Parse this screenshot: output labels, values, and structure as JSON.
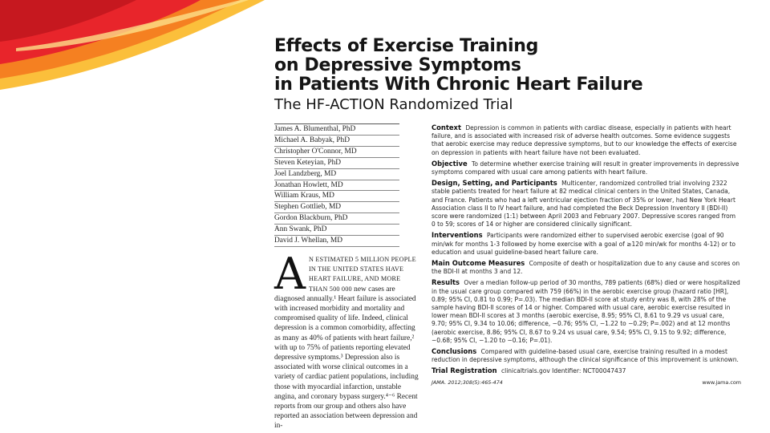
{
  "article": {
    "title_lines": [
      "Effects of Exercise Training",
      "on Depressive Symptoms",
      "in Patients With Chronic Heart Failure"
    ],
    "subtitle": "The HF-ACTION Randomized Trial",
    "authors": [
      "James A. Blumenthal, PhD",
      "Michael A. Babyak, PhD",
      "Christopher O'Connor, MD",
      "Steven Keteyian, PhD",
      "Joel Landzberg, MD",
      "Jonathan Howlett, MD",
      "William Kraus, MD",
      "Stephen Gottlieb, MD",
      "Gordon Blackburn, PhD",
      "Ann Swank, PhD",
      "David J. Whellan, MD"
    ],
    "intro": {
      "dropcap": "A",
      "lead": "N ESTIMATED 5 MILLION PEOPLE in the United States have heart failure, and more than 500 000",
      "text": "new cases are diagnosed annually.¹ Heart failure is associated with increased morbidity and mortality and compromised quality of life. Indeed, clinical depression is a common comorbidity, affecting as many as 40% of patients with heart failure,² with up to 75% of patients reporting elevated depressive symptoms.³ Depression also is associated with worse clinical outcomes in a variety of cardiac patient populations, including those with myocardial infarction, unstable angina, and coronary bypass surgery.⁴⁻⁶ Recent reports from our group and others also have reported an association between depression and in-"
    },
    "abstract": {
      "context_label": "Context",
      "context": "Depression is common in patients with cardiac disease, especially in patients with heart failure, and is associated with increased risk of adverse health outcomes. Some evidence suggests that aerobic exercise may reduce depressive symptoms, but to our knowledge the effects of exercise on depression in patients with heart failure have not been evaluated.",
      "objective_label": "Objective",
      "objective": "To determine whether exercise training will result in greater improvements in depressive symptoms compared with usual care among patients with heart failure.",
      "design_label": "Design, Setting, and Participants",
      "design": "Multicenter, randomized controlled trial involving 2322 stable patients treated for heart failure at 82 medical clinical centers in the United States, Canada, and France. Patients who had a left ventricular ejection fraction of 35% or lower, had New York Heart Association class II to IV heart failure, and had completed the Beck Depression Inventory II (BDI-II) score were randomized (1:1) between April 2003 and February 2007. Depressive scores ranged from 0 to 59; scores of 14 or higher are considered clinically significant.",
      "interventions_label": "Interventions",
      "interventions": "Participants were randomized either to supervised aerobic exercise (goal of 90 min/wk for months 1-3 followed by home exercise with a goal of ≥120 min/wk for months 4-12) or to education and usual guideline-based heart failure care.",
      "outcomes_label": "Main Outcome Measures",
      "outcomes": "Composite of death or hospitalization due to any cause and scores on the BDI-II at months 3 and 12.",
      "results_label": "Results",
      "results": "Over a median follow-up period of 30 months, 789 patients (68%) died or were hospitalized in the usual care group compared with 759 (66%) in the aerobic exercise group (hazard ratio [HR], 0.89; 95% CI, 0.81 to 0.99; P=.03). The median BDI-II score at study entry was 8, with 28% of the sample having BDI-II scores of 14 or higher. Compared with usual care, aerobic exercise resulted in lower mean BDI-II scores at 3 months (aerobic exercise, 8.95; 95% CI, 8.61 to 9.29 vs usual care, 9.70; 95% CI, 9.34 to 10.06; difference, −0.76; 95% CI, −1.22 to −0.29; P=.002) and at 12 months (aerobic exercise, 8.86; 95% CI, 8.67 to 9.24 vs usual care, 9.54; 95% CI, 9.15 to 9.92; difference, −0.68; 95% CI, −1.20 to −0.16; P=.01).",
      "conclusions_label": "Conclusions",
      "conclusions": "Compared with guideline-based usual care, exercise training resulted in a modest reduction in depressive symptoms, although the clinical significance of this improvement is unknown.",
      "trial_label": "Trial Registration",
      "trial": "clinicaltrials.gov Identifier: NCT00047437",
      "citation": "JAMA. 2012;308(5):465-474",
      "url": "www.jama.com"
    }
  },
  "colors": {
    "decor_red": "#e8252b",
    "decor_orange": "#f47b20",
    "decor_yellow": "#fbb826"
  }
}
